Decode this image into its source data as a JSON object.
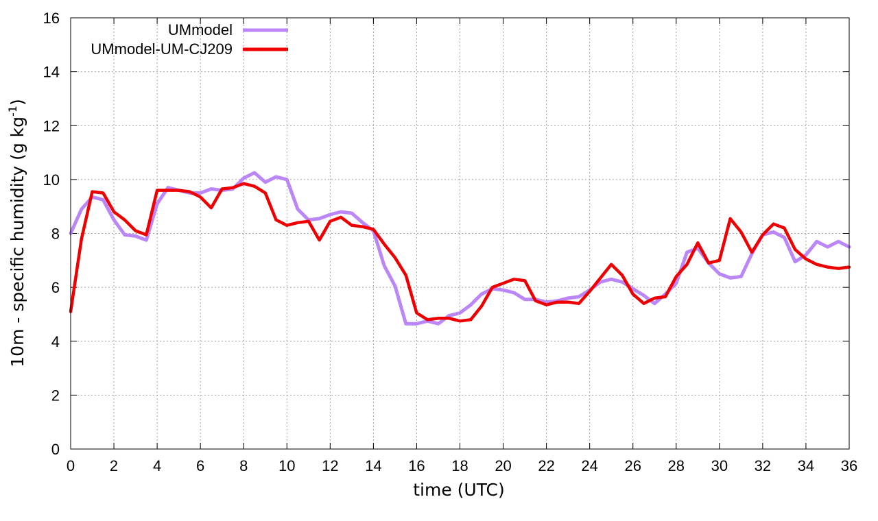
{
  "chart_data": {
    "type": "line",
    "xlabel": "time (UTC)",
    "ylabel_main": "10m - specific humidity (g kg",
    "ylabel_sup": "-1",
    "ylabel_close": ")",
    "xlim": [
      0,
      36
    ],
    "ylim": [
      0,
      16
    ],
    "xticks": [
      0,
      2,
      4,
      6,
      8,
      10,
      12,
      14,
      16,
      18,
      20,
      22,
      24,
      26,
      28,
      30,
      32,
      34,
      36
    ],
    "yticks": [
      0,
      2,
      4,
      6,
      8,
      10,
      12,
      14,
      16
    ],
    "grid": true,
    "legend_position": "top-left",
    "series": [
      {
        "name": "UMmodel",
        "color": "#bb86f7",
        "x": [
          0,
          0.5,
          1,
          1.5,
          2,
          2.5,
          3,
          3.5,
          4,
          4.5,
          5,
          5.5,
          6,
          6.5,
          7,
          7.5,
          8,
          8.5,
          9,
          9.5,
          10,
          10.5,
          11,
          11.5,
          12,
          12.5,
          13,
          13.5,
          14,
          14.5,
          15,
          15.5,
          16,
          16.5,
          17,
          17.5,
          18,
          18.5,
          19,
          19.5,
          20,
          20.5,
          21,
          21.5,
          22,
          22.5,
          23,
          23.5,
          24,
          24.5,
          25,
          25.5,
          26,
          26.5,
          27,
          27.5,
          28,
          28.5,
          29,
          29.5,
          30,
          30.5,
          31,
          31.5,
          32,
          32.5,
          33,
          33.5,
          34,
          34.5,
          35,
          35.5,
          36
        ],
        "values": [
          8.0,
          8.9,
          9.35,
          9.25,
          8.5,
          7.95,
          7.9,
          7.75,
          9.1,
          9.7,
          9.6,
          9.5,
          9.5,
          9.65,
          9.6,
          9.65,
          10.05,
          10.25,
          9.9,
          10.1,
          10.0,
          8.9,
          8.5,
          8.55,
          8.7,
          8.8,
          8.75,
          8.4,
          8.1,
          6.8,
          6.05,
          4.65,
          4.65,
          4.75,
          4.65,
          4.95,
          5.05,
          5.35,
          5.75,
          5.95,
          5.9,
          5.8,
          5.55,
          5.55,
          5.45,
          5.5,
          5.6,
          5.65,
          5.9,
          6.2,
          6.3,
          6.2,
          5.95,
          5.7,
          5.4,
          5.75,
          6.15,
          7.3,
          7.45,
          6.9,
          6.5,
          6.35,
          6.4,
          7.25,
          7.95,
          8.05,
          7.85,
          6.95,
          7.2,
          7.7,
          7.5,
          7.7,
          7.5
        ]
      },
      {
        "name": "UMmodel-UM-CJ209",
        "color": "#ee0000",
        "x": [
          0,
          0.5,
          1,
          1.5,
          2,
          2.5,
          3,
          3.5,
          4,
          4.5,
          5,
          5.5,
          6,
          6.5,
          7,
          7.5,
          8,
          8.5,
          9,
          9.5,
          10,
          10.5,
          11,
          11.5,
          12,
          12.5,
          13,
          13.5,
          14,
          14.5,
          15,
          15.5,
          16,
          16.5,
          17,
          17.5,
          18,
          18.5,
          19,
          19.5,
          20,
          20.5,
          21,
          21.5,
          22,
          22.5,
          23,
          23.5,
          24,
          24.5,
          25,
          25.5,
          26,
          26.5,
          27,
          27.5,
          28,
          28.5,
          29,
          29.5,
          30,
          30.5,
          31,
          31.5,
          32,
          32.5,
          33,
          33.5,
          34,
          34.5,
          35,
          35.5,
          36
        ],
        "values": [
          5.1,
          7.8,
          9.55,
          9.5,
          8.8,
          8.5,
          8.1,
          7.95,
          9.6,
          9.6,
          9.6,
          9.55,
          9.35,
          8.95,
          9.65,
          9.7,
          9.85,
          9.75,
          9.5,
          8.5,
          8.3,
          8.4,
          8.45,
          7.75,
          8.45,
          8.6,
          8.3,
          8.25,
          8.15,
          7.6,
          7.1,
          6.45,
          5.05,
          4.8,
          4.85,
          4.85,
          4.75,
          4.8,
          5.3,
          6.0,
          6.15,
          6.3,
          6.25,
          5.5,
          5.35,
          5.45,
          5.45,
          5.4,
          5.85,
          6.35,
          6.85,
          6.45,
          5.75,
          5.4,
          5.6,
          5.65,
          6.4,
          6.85,
          7.65,
          6.9,
          7.0,
          8.55,
          8.05,
          7.3,
          7.95,
          8.35,
          8.2,
          7.4,
          7.05,
          6.85,
          6.75,
          6.7,
          6.75
        ]
      }
    ]
  }
}
